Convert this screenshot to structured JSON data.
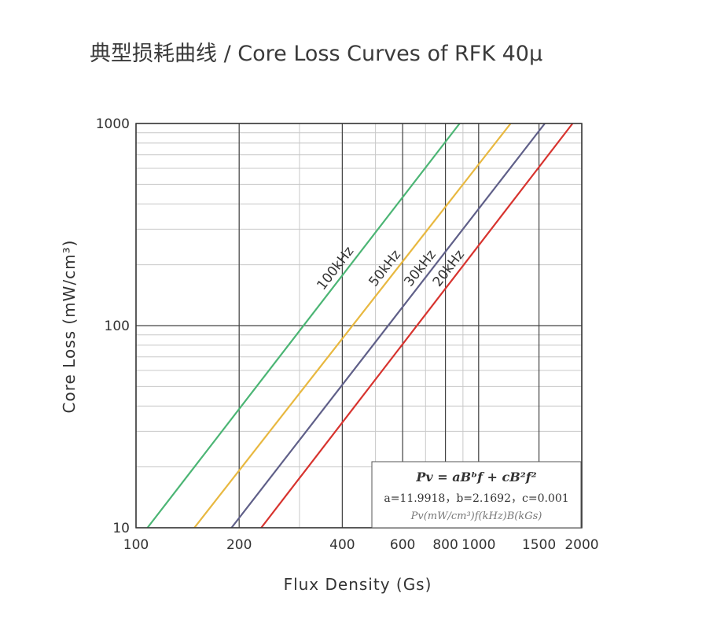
{
  "title": "典型损耗曲线 / Core Loss Curves of RFK 40μ",
  "chart_data": {
    "type": "line",
    "title": "典型损耗曲线 / Core Loss Curves of RFK 40μ",
    "xlabel": "Flux Density (Gs)",
    "ylabel": "Core Loss (mW/cm³)",
    "x_scale": "log",
    "y_scale": "log",
    "xlim": [
      100,
      2000
    ],
    "ylim": [
      10,
      1000
    ],
    "x_ticks": [
      100,
      200,
      400,
      600,
      800,
      1000,
      1500,
      2000
    ],
    "x_tick_labels": [
      "100",
      "200",
      "400",
      "600",
      "800",
      "1000",
      "1500",
      "2000"
    ],
    "y_ticks": [
      10,
      100,
      1000
    ],
    "y_tick_labels": [
      "10",
      "100",
      "1000"
    ],
    "grid": true,
    "formula": {
      "a": 11.9918,
      "b": 2.1692,
      "c": 0.001,
      "line1": "Pv = aBᵇf + cB²f²",
      "line2": "a=11.9918，b=2.1692，c=0.001",
      "line3": "Pv(mW/cm³)f(kHz)B(kGs)"
    },
    "series": [
      {
        "name": "100kHz",
        "f_khz": 100,
        "color": "#4bb574",
        "x": [
          108,
          880
        ],
        "y": [
          10,
          1000
        ]
      },
      {
        "name": "50kHz",
        "f_khz": 50,
        "color": "#e8b840",
        "x": [
          148,
          1240
        ],
        "y": [
          10,
          1000
        ]
      },
      {
        "name": "30kHz",
        "f_khz": 30,
        "color": "#5f5f88",
        "x": [
          190,
          1560
        ],
        "y": [
          10,
          1000
        ]
      },
      {
        "name": "20kHz",
        "f_khz": 20,
        "color": "#d7332e",
        "x": [
          232,
          1880
        ],
        "y": [
          10,
          1000
        ]
      }
    ]
  }
}
